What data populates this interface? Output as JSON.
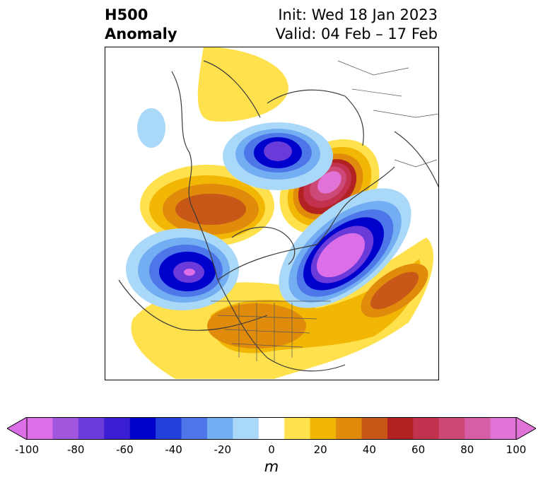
{
  "title": {
    "left_line1": "H500",
    "left_line2": "Anomaly",
    "right_line1": "Init: Wed 18 Jan 2023",
    "right_line2": "Valid: 04 Feb – 17 Feb"
  },
  "colorbar": {
    "unit": "m",
    "ticks": [
      "-100",
      "-80",
      "-60",
      "-40",
      "-20",
      "0",
      "20",
      "40",
      "60",
      "80",
      "100"
    ],
    "levels": [
      -100,
      -90,
      -80,
      -70,
      -60,
      -50,
      -40,
      -30,
      -20,
      -10,
      10,
      20,
      30,
      40,
      50,
      60,
      70,
      80,
      90,
      100
    ],
    "colors": [
      "#dc6ee8",
      "#a057de",
      "#6a3bd8",
      "#3a1fd2",
      "#0000cc",
      "#2440da",
      "#4d77e8",
      "#74aef2",
      "#aad8f8",
      "#ffffff",
      "#ffe14d",
      "#f2b705",
      "#e08b0b",
      "#c85818",
      "#b22222",
      "#c2324e",
      "#cd4a78",
      "#d65ea6",
      "#e273d6"
    ],
    "extend_min_color": "#dc6ee8",
    "extend_max_color": "#e273d6"
  },
  "map": {
    "projection": "polar-stereographic",
    "region": "Northern Hemisphere",
    "anomalies": [
      {
        "location": "Barents Sea / Kara Sea",
        "sign": "positive",
        "peak": 90
      },
      {
        "location": "Greenland / Baffin Bay",
        "sign": "negative",
        "peak": -80
      },
      {
        "location": "Canadian Arctic / Hudson Bay",
        "sign": "negative",
        "peak": -90
      },
      {
        "location": "Gulf of Alaska / NE Pacific",
        "sign": "negative",
        "peak": -90
      },
      {
        "location": "Central North Pacific",
        "sign": "positive",
        "peak": 50
      },
      {
        "location": "Eastern United States / Atlantic",
        "sign": "positive",
        "peak": 50
      },
      {
        "location": "Western Siberia",
        "sign": "positive",
        "peak": 30
      },
      {
        "location": "Western Europe",
        "sign": "negative",
        "peak": -30
      }
    ]
  }
}
